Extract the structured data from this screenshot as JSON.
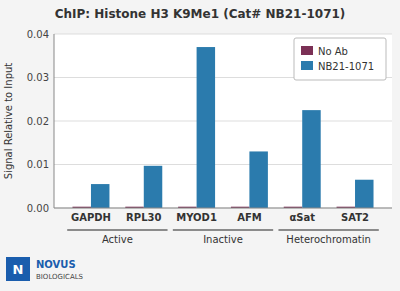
{
  "chart_data": {
    "type": "bar",
    "title": "ChIP: Histone H3 K9Me1 (Cat# NB21-1071)",
    "y_label": "Signal Relative to Input",
    "categories": [
      "GAPDH",
      "RPL30",
      "MYOD1",
      "AFM",
      "αSat",
      "SAT2"
    ],
    "series": [
      {
        "name": "No Ab",
        "color": "#7B3055",
        "values": [
          0.0003,
          0.0003,
          0.0003,
          0.0003,
          0.0003,
          0.0003
        ]
      },
      {
        "name": "NB21-1071",
        "color": "#2B7BAD",
        "values": [
          0.0055,
          0.0097,
          0.037,
          0.013,
          0.0225,
          0.0065
        ]
      }
    ],
    "groups": [
      {
        "label": "Active",
        "categories": [
          "GAPDH",
          "RPL30"
        ]
      },
      {
        "label": "Inactive",
        "categories": [
          "MYOD1",
          "AFM"
        ]
      },
      {
        "label": "Heterochromatin",
        "categories": [
          "αSat",
          "SAT2"
        ]
      }
    ],
    "ylim": [
      0,
      0.04
    ],
    "yticks": [
      {
        "value": 0.0,
        "label": "0.00"
      },
      {
        "value": 0.01,
        "label": "0.01"
      },
      {
        "value": 0.02,
        "label": "0.02"
      },
      {
        "value": 0.03,
        "label": "0.03"
      },
      {
        "value": 0.04,
        "label": "0.04"
      }
    ],
    "grid": true,
    "legend": "upper right",
    "annotations": [
      {
        "text": "N",
        "color": "#FFFFFF"
      },
      {
        "text": "NOVUS",
        "color": "#1A5DAD"
      },
      {
        "text": "BIOLOGICALS",
        "color": "#444444"
      }
    ]
  }
}
